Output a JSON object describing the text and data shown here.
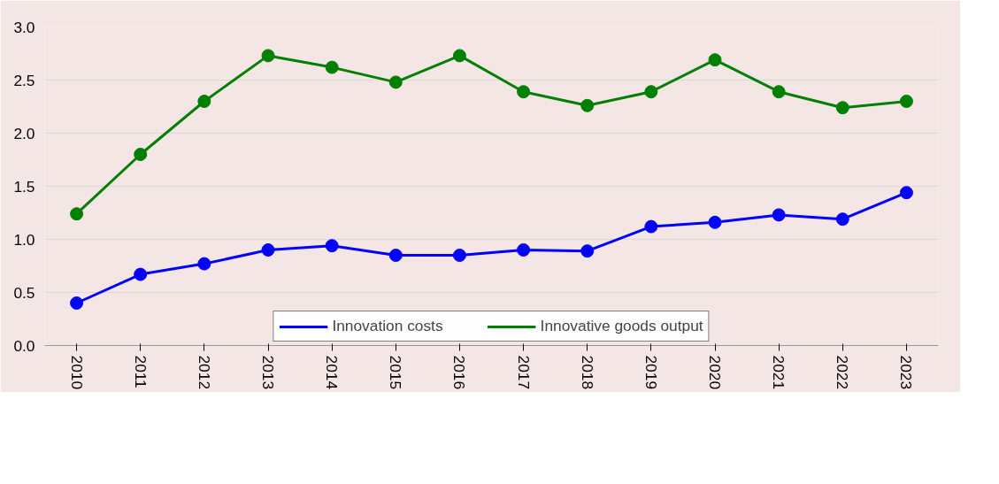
{
  "chart_data": {
    "type": "line",
    "categories": [
      "2010",
      "2011",
      "2012",
      "2013",
      "2014",
      "2015",
      "2016",
      "2017",
      "2018",
      "2019",
      "2020",
      "2021",
      "2022",
      "2023"
    ],
    "series": [
      {
        "name": "Innovation costs",
        "color": "#0000ff",
        "values": [
          0.4,
          0.67,
          0.77,
          0.9,
          0.94,
          0.85,
          0.85,
          0.9,
          0.89,
          1.12,
          1.16,
          1.23,
          1.19,
          1.44
        ]
      },
      {
        "name": "Innovative goods output",
        "color": "#008000",
        "values": [
          1.24,
          1.8,
          2.3,
          2.73,
          2.62,
          2.48,
          2.73,
          2.39,
          2.26,
          2.39,
          2.69,
          2.39,
          2.24,
          2.3
        ]
      }
    ],
    "ylim": [
      0,
      3
    ],
    "yticks": [
      {
        "value": 0,
        "label": "0.0"
      },
      {
        "value": 0.5,
        "label": "0.5"
      },
      {
        "value": 1,
        "label": "1.0"
      },
      {
        "value": 1.5,
        "label": "1.5"
      },
      {
        "value": 2,
        "label": "2.0"
      },
      {
        "value": 2.5,
        "label": "2.5"
      },
      {
        "value": 3,
        "label": "3.0"
      }
    ],
    "grid": "y",
    "legend": "bottom",
    "marker": "circle",
    "line_style": "solid"
  }
}
